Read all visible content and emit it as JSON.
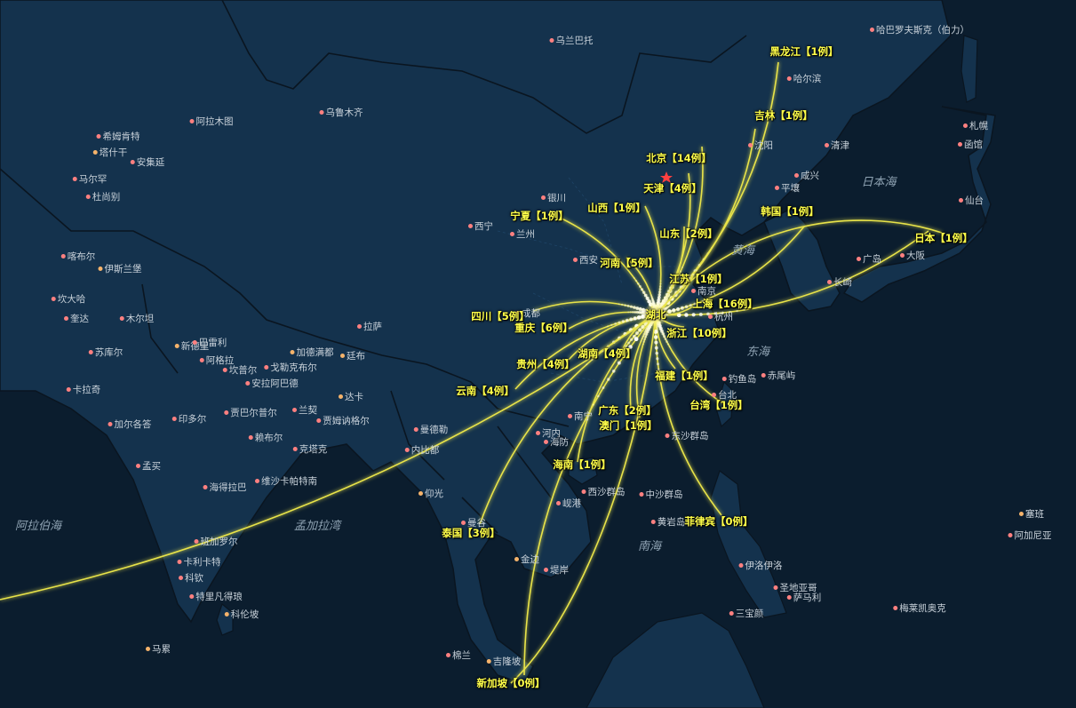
{
  "map": {
    "origin": "湖北",
    "colors": {
      "ocean": "#0b1d2e",
      "land": "#14324d",
      "border": "#0a1520",
      "line": "#e8e34a",
      "label": "#ffff4a",
      "city_dot": "#ff8080"
    },
    "destinations": [
      {
        "label": "黑龙江【1例】"
      },
      {
        "label": "吉林【1例】"
      },
      {
        "label": "北京【14例】"
      },
      {
        "label": "天津【4例】"
      },
      {
        "label": "山西【1例】"
      },
      {
        "label": "宁夏【1例】"
      },
      {
        "label": "韩国【1例】"
      },
      {
        "label": "日本【1例】"
      },
      {
        "label": "山东【2例】"
      },
      {
        "label": "河南【5例】"
      },
      {
        "label": "江苏【1例】"
      },
      {
        "label": "上海【16例】"
      },
      {
        "label": "湖北"
      },
      {
        "label": "四川【5例】"
      },
      {
        "label": "重庆【6例】"
      },
      {
        "label": "浙江【10例】"
      },
      {
        "label": "湖南【4例】"
      },
      {
        "label": "贵州【4例】"
      },
      {
        "label": "福建【1例】"
      },
      {
        "label": "云南【4例】"
      },
      {
        "label": "台湾【1例】"
      },
      {
        "label": "广东【2例】"
      },
      {
        "label": "澳门【1例】"
      },
      {
        "label": "海南【1例】"
      },
      {
        "label": "泰国【3例】"
      },
      {
        "label": "菲律宾【0例】"
      },
      {
        "label": "新加坡【0例】"
      }
    ],
    "cities": [
      {
        "name": "哈巴罗夫斯克（伯力）"
      },
      {
        "name": "乌兰巴托"
      },
      {
        "name": "哈尔滨"
      },
      {
        "name": "阿拉木图"
      },
      {
        "name": "乌鲁木齐"
      },
      {
        "name": "希姆肯特"
      },
      {
        "name": "塔什干"
      },
      {
        "name": "安集延"
      },
      {
        "name": "札幌"
      },
      {
        "name": "函馆"
      },
      {
        "name": "沈阳"
      },
      {
        "name": "清津"
      },
      {
        "name": "咸兴"
      },
      {
        "name": "平壤"
      },
      {
        "name": "仙台"
      },
      {
        "name": "马尔罕"
      },
      {
        "name": "杜尚别"
      },
      {
        "name": "银川"
      },
      {
        "name": "西宁"
      },
      {
        "name": "兰州"
      },
      {
        "name": "喀布尔"
      },
      {
        "name": "伊斯兰堡"
      },
      {
        "name": "西安"
      },
      {
        "name": "大阪"
      },
      {
        "name": "广岛"
      },
      {
        "name": "长崎"
      },
      {
        "name": "坎大哈"
      },
      {
        "name": "奎达"
      },
      {
        "name": "木尔坦"
      },
      {
        "name": "南京"
      },
      {
        "name": "杭州"
      },
      {
        "name": "成都"
      },
      {
        "name": "拉萨"
      },
      {
        "name": "新德里"
      },
      {
        "name": "巴雷利"
      },
      {
        "name": "阿格拉"
      },
      {
        "name": "坎普尔"
      },
      {
        "name": "戈勒克布尔"
      },
      {
        "name": "加德满都"
      },
      {
        "name": "廷布"
      },
      {
        "name": "安拉阿巴德"
      },
      {
        "name": "苏库尔"
      },
      {
        "name": "卡拉奇"
      },
      {
        "name": "达卡"
      },
      {
        "name": "兰契"
      },
      {
        "name": "钓鱼岛"
      },
      {
        "name": "赤尾屿"
      },
      {
        "name": "台北"
      },
      {
        "name": "印多尔"
      },
      {
        "name": "贾巴尔普尔"
      },
      {
        "name": "加尔各答"
      },
      {
        "name": "南宁"
      },
      {
        "name": "贾姆讷格尔"
      },
      {
        "name": "赖布尔"
      },
      {
        "name": "曼德勒"
      },
      {
        "name": "河内"
      },
      {
        "name": "海防"
      },
      {
        "name": "东沙群岛"
      },
      {
        "name": "孟买"
      },
      {
        "name": "维沙卡帕特南"
      },
      {
        "name": "内比都"
      },
      {
        "name": "克塔克"
      },
      {
        "name": "海得拉巴"
      },
      {
        "name": "仰光"
      },
      {
        "name": "西沙群岛"
      },
      {
        "name": "岘港"
      },
      {
        "name": "中沙群岛"
      },
      {
        "name": "黄岩岛"
      },
      {
        "name": "曼谷"
      },
      {
        "name": "金边"
      },
      {
        "name": "堤岸"
      },
      {
        "name": "班加罗尔"
      },
      {
        "name": "卡利卡特"
      },
      {
        "name": "科钦"
      },
      {
        "name": "特里凡得琅"
      },
      {
        "name": "伊洛伊洛"
      },
      {
        "name": "圣地亚哥"
      },
      {
        "name": "萨马利"
      },
      {
        "name": "三宝颜"
      },
      {
        "name": "科伦坡"
      },
      {
        "name": "塞班"
      },
      {
        "name": "阿加尼亚"
      },
      {
        "name": "梅莱凯奥克"
      },
      {
        "name": "马累"
      },
      {
        "name": "棉兰"
      },
      {
        "name": "吉隆坡"
      }
    ],
    "seas": [
      {
        "name": "日本海"
      },
      {
        "name": "黄海"
      },
      {
        "name": "东海"
      },
      {
        "name": "南海"
      },
      {
        "name": "阿拉伯海"
      },
      {
        "name": "孟加拉湾"
      }
    ]
  }
}
